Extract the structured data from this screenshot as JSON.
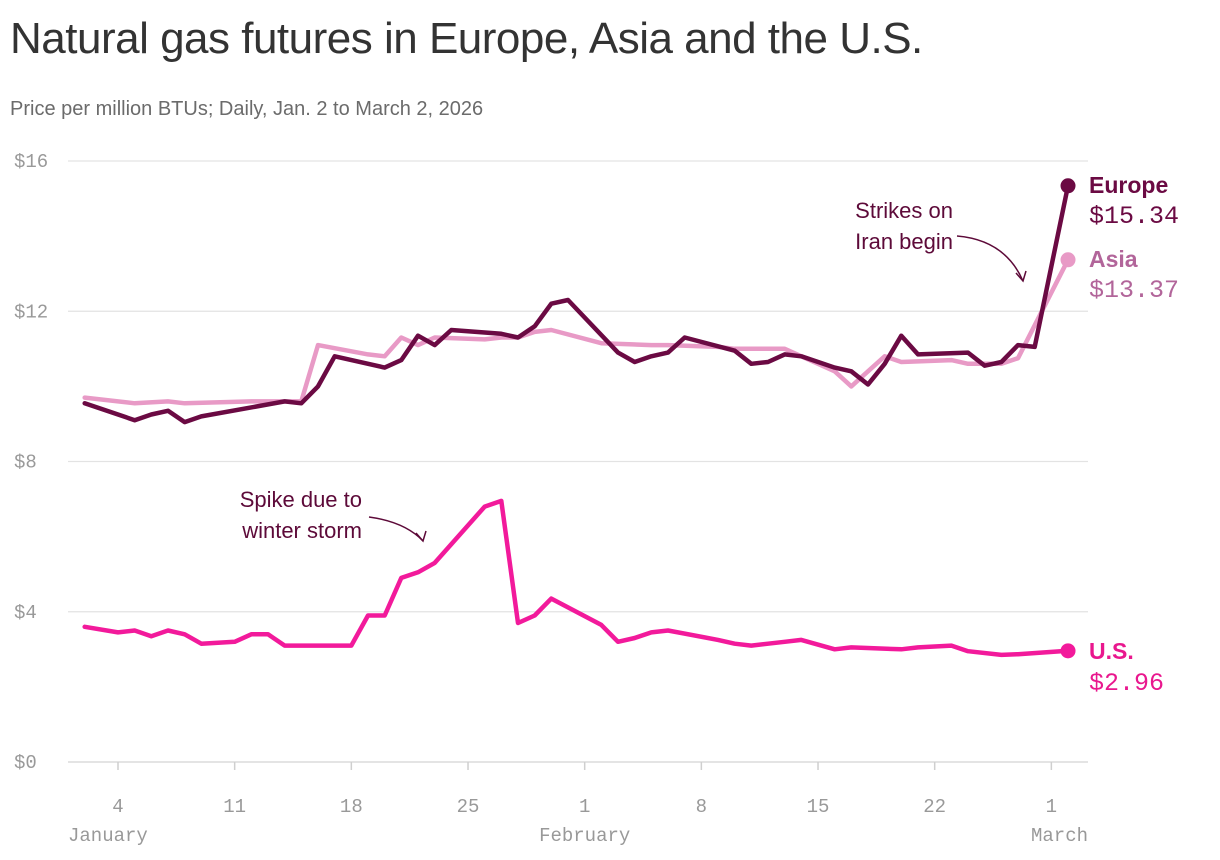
{
  "chart_data": {
    "type": "line",
    "title": "Natural gas futures in Europe, Asia and the U.S.",
    "subtitle": "Price per million BTUs; Daily, Jan. 2 to March 2, 2026",
    "y_ticks": [
      {
        "value": 0,
        "label": "$0"
      },
      {
        "value": 4,
        "label": "$4"
      },
      {
        "value": 8,
        "label": "$8"
      },
      {
        "value": 12,
        "label": "$12"
      },
      {
        "value": 16,
        "label": "$16"
      }
    ],
    "ylim": [
      0,
      16
    ],
    "xlim": [
      "2026-01-02",
      "2026-03-02"
    ],
    "x_ticks": [
      {
        "date": "2026-01-04",
        "label": "4"
      },
      {
        "date": "2026-01-11",
        "label": "11"
      },
      {
        "date": "2026-01-18",
        "label": "18"
      },
      {
        "date": "2026-01-25",
        "label": "25"
      },
      {
        "date": "2026-02-01",
        "label": "1"
      },
      {
        "date": "2026-02-08",
        "label": "8"
      },
      {
        "date": "2026-02-15",
        "label": "15"
      },
      {
        "date": "2026-02-22",
        "label": "22"
      },
      {
        "date": "2026-03-01",
        "label": "1"
      }
    ],
    "month_labels": [
      {
        "date": "2026-01-04",
        "label": "January"
      },
      {
        "date": "2026-02-01",
        "label": "February"
      },
      {
        "date": "2026-03-01",
        "label": "March"
      }
    ],
    "grid": true,
    "legend": "direct labels at line ends",
    "series": [
      {
        "name": "Asia",
        "color": "#e89ac6",
        "label_color": "#b2659a",
        "end_label": "$13.37",
        "points": [
          [
            "2026-01-02",
            9.7
          ],
          [
            "2026-01-05",
            9.55
          ],
          [
            "2026-01-07",
            9.6
          ],
          [
            "2026-01-08",
            9.55
          ],
          [
            "2026-01-12",
            9.6
          ],
          [
            "2026-01-13",
            9.6
          ],
          [
            "2026-01-14",
            9.6
          ],
          [
            "2026-01-15",
            9.6
          ],
          [
            "2026-01-16",
            11.1
          ],
          [
            "2026-01-19",
            10.85
          ],
          [
            "2026-01-20",
            10.8
          ],
          [
            "2026-01-21",
            11.3
          ],
          [
            "2026-01-22",
            11.1
          ],
          [
            "2026-01-23",
            11.3
          ],
          [
            "2026-01-26",
            11.25
          ],
          [
            "2026-01-27",
            11.3
          ],
          [
            "2026-01-28",
            11.3
          ],
          [
            "2026-01-29",
            11.45
          ],
          [
            "2026-01-30",
            11.5
          ],
          [
            "2026-02-02",
            11.15
          ],
          [
            "2026-02-05",
            11.1
          ],
          [
            "2026-02-06",
            11.1
          ],
          [
            "2026-02-09",
            11.05
          ],
          [
            "2026-02-10",
            11.0
          ],
          [
            "2026-02-11",
            11.0
          ],
          [
            "2026-02-12",
            11.0
          ],
          [
            "2026-02-13",
            11.0
          ],
          [
            "2026-02-16",
            10.4
          ],
          [
            "2026-02-17",
            10.0
          ],
          [
            "2026-02-18",
            10.4
          ],
          [
            "2026-02-19",
            10.8
          ],
          [
            "2026-02-20",
            10.65
          ],
          [
            "2026-02-23",
            10.7
          ],
          [
            "2026-02-24",
            10.6
          ],
          [
            "2026-02-25",
            10.6
          ],
          [
            "2026-02-26",
            10.6
          ],
          [
            "2026-02-27",
            10.75
          ],
          [
            "2026-03-02",
            13.37
          ]
        ]
      },
      {
        "name": "Europe",
        "color": "#6b0a43",
        "label_color": "#6b0a43",
        "end_label": "$15.34",
        "points": [
          [
            "2026-01-02",
            9.55
          ],
          [
            "2026-01-05",
            9.1
          ],
          [
            "2026-01-06",
            9.25
          ],
          [
            "2026-01-07",
            9.35
          ],
          [
            "2026-01-08",
            9.05
          ],
          [
            "2026-01-09",
            9.2
          ],
          [
            "2026-01-14",
            9.6
          ],
          [
            "2026-01-15",
            9.55
          ],
          [
            "2026-01-16",
            10.0
          ],
          [
            "2026-01-17",
            10.8
          ],
          [
            "2026-01-20",
            10.5
          ],
          [
            "2026-01-21",
            10.7
          ],
          [
            "2026-01-22",
            11.35
          ],
          [
            "2026-01-23",
            11.1
          ],
          [
            "2026-01-24",
            11.5
          ],
          [
            "2026-01-27",
            11.4
          ],
          [
            "2026-01-28",
            11.3
          ],
          [
            "2026-01-29",
            11.6
          ],
          [
            "2026-01-30",
            12.2
          ],
          [
            "2026-01-31",
            12.3
          ],
          [
            "2026-02-03",
            10.9
          ],
          [
            "2026-02-04",
            10.65
          ],
          [
            "2026-02-05",
            10.8
          ],
          [
            "2026-02-06",
            10.9
          ],
          [
            "2026-02-07",
            11.3
          ],
          [
            "2026-02-10",
            10.95
          ],
          [
            "2026-02-11",
            10.6
          ],
          [
            "2026-02-12",
            10.65
          ],
          [
            "2026-02-13",
            10.85
          ],
          [
            "2026-02-14",
            10.8
          ],
          [
            "2026-02-16",
            10.5
          ],
          [
            "2026-02-17",
            10.4
          ],
          [
            "2026-02-18",
            10.05
          ],
          [
            "2026-02-19",
            10.6
          ],
          [
            "2026-02-20",
            11.35
          ],
          [
            "2026-02-21",
            10.85
          ],
          [
            "2026-02-24",
            10.9
          ],
          [
            "2026-02-25",
            10.55
          ],
          [
            "2026-02-26",
            10.65
          ],
          [
            "2026-02-27",
            11.1
          ],
          [
            "2026-02-28",
            11.05
          ],
          [
            "2026-03-02",
            15.34
          ]
        ]
      },
      {
        "name": "U.S.",
        "color": "#f21a9b",
        "label_color": "#e9178e",
        "end_label": "$2.96",
        "points": [
          [
            "2026-01-02",
            3.6
          ],
          [
            "2026-01-04",
            3.45
          ],
          [
            "2026-01-05",
            3.5
          ],
          [
            "2026-01-06",
            3.35
          ],
          [
            "2026-01-07",
            3.5
          ],
          [
            "2026-01-08",
            3.4
          ],
          [
            "2026-01-09",
            3.15
          ],
          [
            "2026-01-11",
            3.2
          ],
          [
            "2026-01-12",
            3.4
          ],
          [
            "2026-01-13",
            3.4
          ],
          [
            "2026-01-14",
            3.1
          ],
          [
            "2026-01-15",
            3.1
          ],
          [
            "2026-01-16",
            3.1
          ],
          [
            "2026-01-18",
            3.1
          ],
          [
            "2026-01-19",
            3.9
          ],
          [
            "2026-01-20",
            3.9
          ],
          [
            "2026-01-21",
            4.9
          ],
          [
            "2026-01-22",
            5.05
          ],
          [
            "2026-01-23",
            5.3
          ],
          [
            "2026-01-26",
            6.8
          ],
          [
            "2026-01-27",
            6.95
          ],
          [
            "2026-01-28",
            3.7
          ],
          [
            "2026-01-29",
            3.9
          ],
          [
            "2026-01-30",
            4.35
          ],
          [
            "2026-02-02",
            3.65
          ],
          [
            "2026-02-03",
            3.2
          ],
          [
            "2026-02-04",
            3.3
          ],
          [
            "2026-02-05",
            3.45
          ],
          [
            "2026-02-06",
            3.5
          ],
          [
            "2026-02-09",
            3.25
          ],
          [
            "2026-02-10",
            3.15
          ],
          [
            "2026-02-11",
            3.1
          ],
          [
            "2026-02-12",
            3.15
          ],
          [
            "2026-02-13",
            3.2
          ],
          [
            "2026-02-14",
            3.25
          ],
          [
            "2026-02-16",
            3.0
          ],
          [
            "2026-02-17",
            3.05
          ],
          [
            "2026-02-20",
            3.0
          ],
          [
            "2026-02-21",
            3.05
          ],
          [
            "2026-02-23",
            3.1
          ],
          [
            "2026-02-24",
            2.95
          ],
          [
            "2026-02-26",
            2.85
          ],
          [
            "2026-02-27",
            2.87
          ],
          [
            "2026-03-02",
            2.96
          ]
        ]
      }
    ],
    "annotations": [
      {
        "lines": [
          "Strikes on",
          "Iran begin"
        ],
        "target": [
          "2026-02-28",
          12.8
        ]
      },
      {
        "lines": [
          "Spike due to",
          "winter storm"
        ],
        "target": [
          "2026-01-23",
          5.9
        ]
      }
    ]
  }
}
